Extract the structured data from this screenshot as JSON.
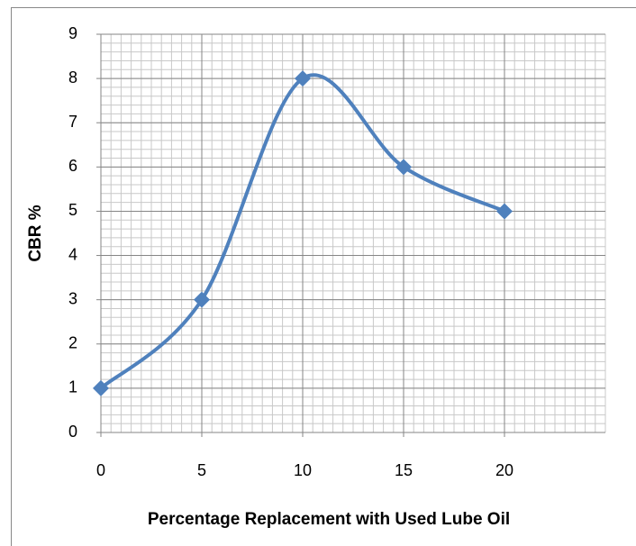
{
  "chart_data": {
    "type": "line",
    "x_label": "Percentage Replacement with Used Lube Oil",
    "y_label": "CBR %",
    "x": [
      0,
      5,
      10,
      15,
      20
    ],
    "values": [
      1,
      3,
      8,
      6,
      5
    ],
    "color": "#4f81bd",
    "smooth": true,
    "marker": "diamond",
    "xlim": [
      0,
      25
    ],
    "xticks": [
      0,
      5,
      10,
      15,
      20
    ],
    "ylim": [
      0,
      9
    ],
    "yticks": [
      0,
      1,
      2,
      3,
      4,
      5,
      6,
      7,
      8,
      9
    ],
    "grid": true,
    "x_minor_step": 0.5,
    "y_minor_step": 0.2
  }
}
